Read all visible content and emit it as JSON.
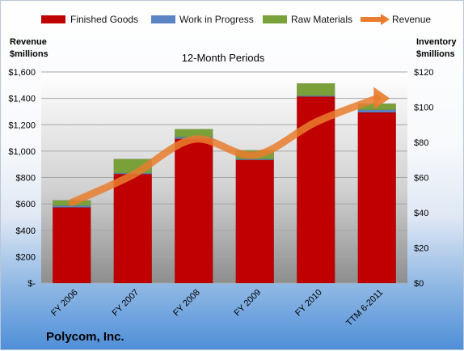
{
  "chart_data": {
    "type": "bar",
    "subtitle": "12-Month Periods",
    "company": "Polycom, Inc.",
    "categories": [
      "FY 2006",
      "FY 2007",
      "FY 2008",
      "FY 2009",
      "FY 2010",
      "TTM 6-2011"
    ],
    "stack_axis": "right",
    "series": [
      {
        "name": "Finished Goods",
        "color": "#c00000",
        "values": [
          43,
          62,
          82,
          70,
          106,
          97
        ]
      },
      {
        "name": "Work in Progress",
        "color": "#5b84c4",
        "values": [
          1,
          0.5,
          1,
          0.5,
          0.5,
          1.5
        ]
      },
      {
        "name": "Raw Materials",
        "color": "#7aa03a",
        "values": [
          3,
          8,
          4.5,
          5,
          7,
          3.5
        ]
      }
    ],
    "line_series": {
      "name": "Revenue",
      "color": "#e97c2e",
      "axis": "left",
      "values": [
        610,
        820,
        1090,
        970,
        1220,
        1400
      ]
    },
    "left_axis": {
      "title_line1": "Revenue",
      "title_line2": "$millions",
      "ticks": [
        "$-",
        "$200",
        "$400",
        "$600",
        "$800",
        "$1,000",
        "$1,200",
        "$1,400",
        "$1,600"
      ],
      "ylim": [
        0,
        1600
      ]
    },
    "right_axis": {
      "title_line1": "Inventory",
      "title_line2": "$millions",
      "ticks": [
        "$0",
        "$20",
        "$40",
        "$60",
        "$80",
        "$100",
        "$120"
      ],
      "ylim": [
        0,
        120
      ]
    },
    "grid": true,
    "legend_position": "top"
  }
}
